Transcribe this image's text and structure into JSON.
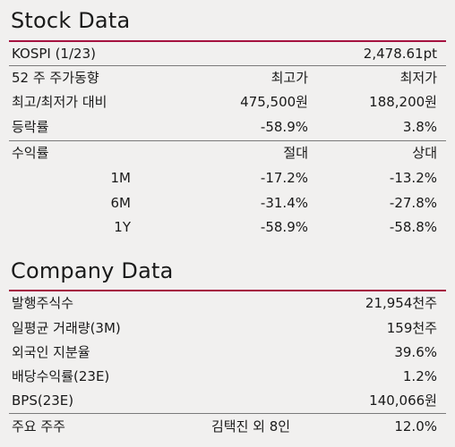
{
  "stock": {
    "title": "Stock Data",
    "kospi": {
      "label": "KOSPI (1/23)",
      "value": "2,478.61pt"
    },
    "week52": {
      "label": "52 주 주가동향",
      "col_high": "최고가",
      "col_low": "최저가"
    },
    "price_vs": {
      "label": "최고/최저가 대비",
      "high": "475,500원",
      "low": "188,200원"
    },
    "change": {
      "label": "등락률",
      "high": "-58.9%",
      "low": "3.8%"
    },
    "returns": {
      "label": "수익률",
      "col_abs": "절대",
      "col_rel": "상대",
      "rows": [
        {
          "period": "1M",
          "abs": "-17.2%",
          "rel": "-13.2%"
        },
        {
          "period": "6M",
          "abs": "-31.4%",
          "rel": "-27.8%"
        },
        {
          "period": "1Y",
          "abs": "-58.9%",
          "rel": "-58.8%"
        }
      ]
    }
  },
  "company": {
    "title": "Company Data",
    "shares": {
      "label": "발행주식수",
      "value": "21,954천주"
    },
    "avg_volume": {
      "label": "일평균 거래량(3M)",
      "value": "159천주"
    },
    "foreign": {
      "label": "외국인 지분율",
      "value": "39.6%"
    },
    "dividend": {
      "label": "배당수익률(23E)",
      "value": "1.2%"
    },
    "bps": {
      "label": "BPS(23E)",
      "value": "140,066원"
    },
    "holder": {
      "label": "주요 주주",
      "name": "김택진 외 8인",
      "value": "12.0%"
    }
  },
  "colors": {
    "accent": "#a5123f",
    "background": "#f1f0ef"
  }
}
